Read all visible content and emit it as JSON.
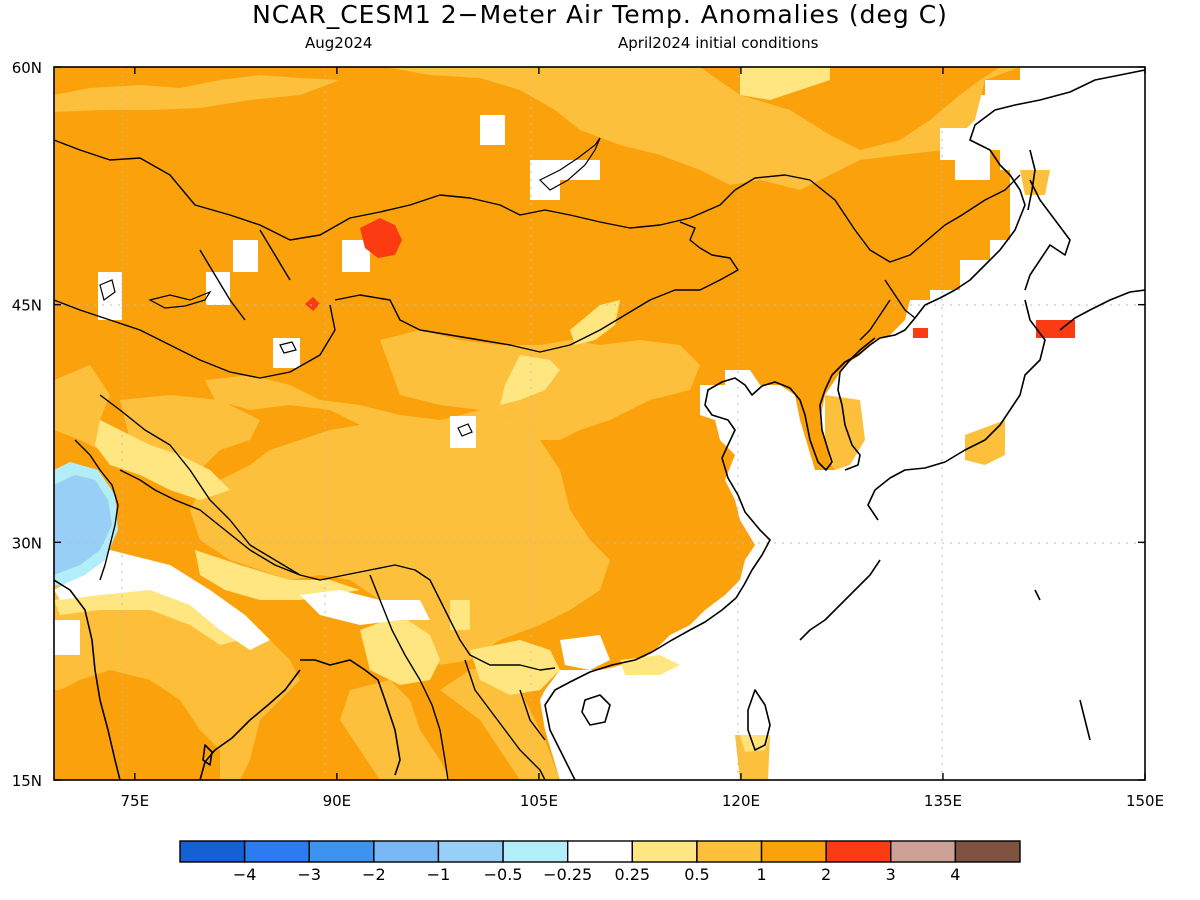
{
  "title": "NCAR_CESM1 2−Meter Air Temp. Anomalies (deg C)",
  "subtitle_left": "Aug2024",
  "subtitle_right": "April2024 initial conditions",
  "map": {
    "lon_range": [
      69,
      150
    ],
    "lat_range": [
      15,
      60
    ],
    "lon_ticks": [
      {
        "v": 75,
        "label": "75E"
      },
      {
        "v": 90,
        "label": "90E"
      },
      {
        "v": 105,
        "label": "105E"
      },
      {
        "v": 120,
        "label": "120E"
      },
      {
        "v": 135,
        "label": "135E"
      },
      {
        "v": 150,
        "label": "150E"
      }
    ],
    "lat_ticks": [
      {
        "v": 60,
        "label": "60N"
      },
      {
        "v": 45,
        "label": "45N"
      },
      {
        "v": 30,
        "label": "30N"
      },
      {
        "v": 15,
        "label": "15N"
      }
    ],
    "grid": "dotted"
  },
  "colorbar": {
    "colors": [
      "#1560d4",
      "#2a7cf0",
      "#3d94f0",
      "#78b8f5",
      "#98cff7",
      "#b2eefa",
      "#ffffff",
      "#ffe680",
      "#fdc03c",
      "#fba10c",
      "#fb3c13",
      "#cda194",
      "#7e5141"
    ],
    "labels": [
      "−4",
      "−3",
      "−2",
      "−1",
      "−0.5",
      "−0.25",
      "0.25",
      "0.5",
      "1",
      "2",
      "3",
      "4"
    ]
  },
  "colors": {
    "orange": "#fba10c",
    "light_orange": "#fdc03c",
    "yellow": "#ffe680",
    "red": "#fb3c13",
    "light_blue": "#98cff7",
    "coast": "#000000"
  }
}
